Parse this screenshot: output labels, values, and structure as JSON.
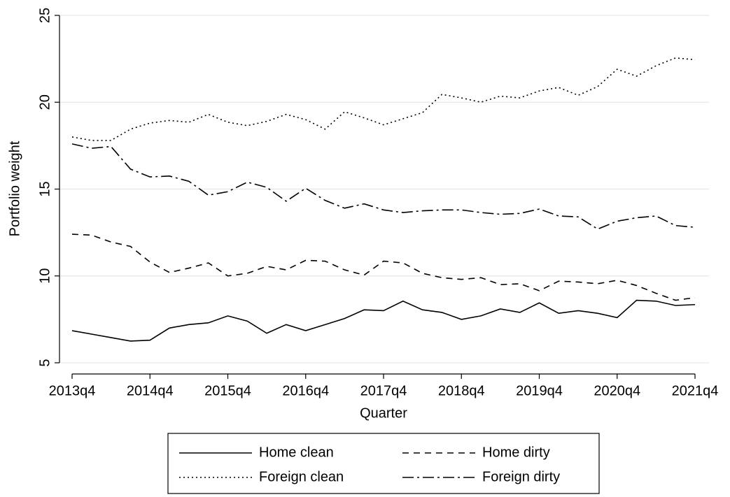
{
  "chart_data": {
    "type": "line",
    "xlabel": "Quarter",
    "ylabel": "Portfolio weight",
    "categories": [
      "2013q4",
      null,
      null,
      null,
      "2014q4",
      null,
      null,
      null,
      "2015q4",
      null,
      null,
      null,
      "2016q4",
      null,
      null,
      null,
      "2017q4",
      null,
      null,
      null,
      "2018q4",
      null,
      null,
      null,
      "2019q4",
      null,
      null,
      null,
      "2020q4",
      null,
      null,
      null,
      "2021q4"
    ],
    "ylim": [
      5,
      25
    ],
    "yticks": [
      5,
      10,
      15,
      20,
      25
    ],
    "grid": true,
    "legend": "bottom",
    "series": [
      {
        "name": "Home clean",
        "color": "#000000",
        "dash": "solid",
        "values": [
          6.85,
          6.65,
          6.45,
          6.25,
          6.3,
          7.0,
          7.2,
          7.3,
          7.7,
          7.4,
          6.7,
          7.2,
          6.85,
          7.2,
          7.55,
          8.05,
          8.0,
          8.55,
          8.05,
          7.9,
          7.5,
          7.7,
          8.1,
          7.9,
          8.45,
          7.85,
          8.0,
          7.85,
          7.6,
          8.6,
          8.55,
          8.3,
          8.35
        ]
      },
      {
        "name": "Home dirty",
        "color": "#000000",
        "dash": "dashed",
        "values": [
          12.4,
          12.35,
          11.95,
          11.7,
          10.8,
          10.2,
          10.45,
          10.75,
          10.0,
          10.15,
          10.55,
          10.35,
          10.9,
          10.85,
          10.35,
          10.05,
          10.85,
          10.75,
          10.15,
          9.9,
          9.8,
          9.9,
          9.5,
          9.55,
          9.15,
          9.7,
          9.65,
          9.55,
          9.75,
          9.45,
          9.0,
          8.6,
          8.75
        ]
      },
      {
        "name": "Foreign clean",
        "color": "#000000",
        "dash": "dotted",
        "values": [
          18.0,
          17.8,
          17.8,
          18.45,
          18.8,
          18.95,
          18.85,
          19.3,
          18.85,
          18.65,
          18.9,
          19.3,
          19.0,
          18.45,
          19.45,
          19.1,
          18.7,
          19.05,
          19.4,
          20.45,
          20.25,
          20.0,
          20.35,
          20.25,
          20.65,
          20.85,
          20.4,
          20.9,
          21.9,
          21.5,
          22.1,
          22.55,
          22.45
        ]
      },
      {
        "name": "Foreign dirty",
        "color": "#000000",
        "dash": "dashdot",
        "values": [
          17.6,
          17.35,
          17.45,
          16.15,
          15.7,
          15.75,
          15.45,
          14.65,
          14.85,
          15.4,
          15.1,
          14.3,
          15.05,
          14.35,
          13.9,
          14.15,
          13.8,
          13.65,
          13.75,
          13.8,
          13.8,
          13.65,
          13.55,
          13.6,
          13.85,
          13.45,
          13.4,
          12.7,
          13.15,
          13.35,
          13.45,
          12.9,
          12.8
        ]
      }
    ]
  }
}
